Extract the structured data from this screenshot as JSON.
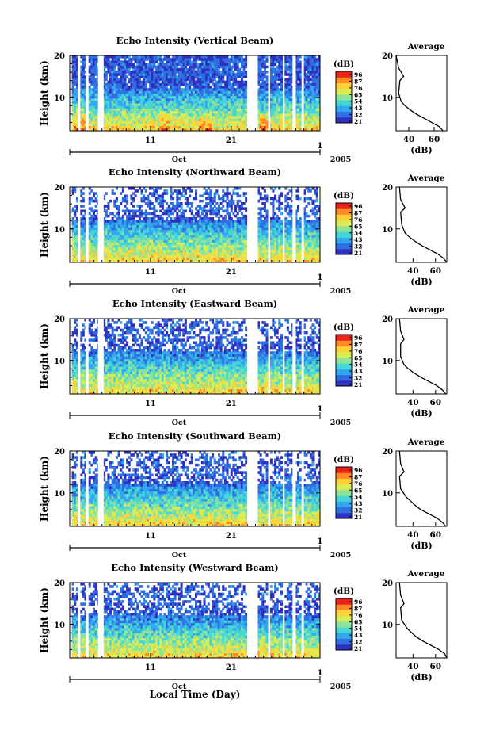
{
  "figure": {
    "xlabel": "Local Time (Day)",
    "ylabel": "Height (km)",
    "month_label": "Oct",
    "year_label": "2005",
    "colorbar_unit": "(dB)",
    "colorbar_ticks": [
      "96",
      "87",
      "76",
      "65",
      "54",
      "43",
      "32",
      "21"
    ],
    "colormap": [
      "#3030c0",
      "#2f6fe0",
      "#33a6f0",
      "#45d6d6",
      "#8ee39a",
      "#d9ec55",
      "#ffd23a",
      "#ff8a26",
      "#e8241c"
    ],
    "data_gap_color": "#ffffff"
  },
  "chart_data": [
    {
      "type": "heatmap",
      "title": "Echo Intensity (Vertical Beam)",
      "ylabel": "Height (km)",
      "y_ticks": [
        10,
        20
      ],
      "ylim": [
        2,
        20
      ],
      "x_tick_labels": [
        "11",
        "21"
      ],
      "bottom_tick_label": "1",
      "x_range": [
        "Oct 1 2005",
        "Nov 1 2005"
      ],
      "colorbar": {
        "label": "(dB)",
        "ticks": [
          96,
          87,
          76,
          65,
          54,
          43,
          32,
          21
        ]
      },
      "data_gaps_days": [
        [
          1.0,
          1.2
        ],
        [
          2.0,
          2.3
        ],
        [
          3.0,
          3.2
        ],
        [
          4.5,
          5.2
        ],
        [
          23.0,
          24.3
        ],
        [
          25.6,
          25.8
        ],
        [
          27.4,
          27.6
        ],
        [
          28.6,
          29.0
        ],
        [
          29.8,
          30.0
        ]
      ],
      "high_intensity_regions_days": [
        [
          1.5,
          3.0
        ],
        [
          12.0,
          13.5
        ],
        [
          17.0,
          18.5
        ],
        [
          24.5,
          25.5
        ]
      ],
      "profile": {
        "title": "Average",
        "xlabel": "(dB)",
        "x_ticks": [
          40,
          60
        ],
        "xlim": [
          30,
          70
        ],
        "y_ticks": [
          10,
          20
        ],
        "ylim": [
          2,
          20
        ],
        "x": [
          67,
          64,
          58,
          52,
          46,
          41,
          37,
          34,
          32,
          33,
          36,
          32,
          30
        ],
        "y": [
          2,
          3,
          4,
          5,
          6,
          7,
          8,
          9,
          11,
          14,
          15,
          17,
          20
        ]
      }
    },
    {
      "type": "heatmap",
      "title": "Echo Intensity (Northward Beam)",
      "ylabel": "Height (km)",
      "y_ticks": [
        10,
        20
      ],
      "ylim": [
        2,
        20
      ],
      "x_tick_labels": [
        "11",
        "21"
      ],
      "bottom_tick_label": "1",
      "x_range": [
        "Oct 1 2005",
        "Nov 1 2005"
      ],
      "colorbar": {
        "label": "(dB)",
        "ticks": [
          96,
          87,
          76,
          65,
          54,
          43,
          32,
          21
        ]
      },
      "data_gaps_days": [
        [
          1.0,
          1.2
        ],
        [
          2.0,
          2.3
        ],
        [
          3.0,
          3.2
        ],
        [
          4.5,
          5.2
        ],
        [
          23.0,
          24.3
        ],
        [
          25.6,
          25.8
        ],
        [
          27.4,
          27.6
        ],
        [
          28.6,
          29.0
        ],
        [
          29.8,
          30.0
        ]
      ],
      "profile": {
        "title": "Average",
        "xlabel": "(dB)",
        "x_ticks": [
          40,
          60
        ],
        "xlim": [
          25,
          70
        ],
        "y_ticks": [
          10,
          20
        ],
        "ylim": [
          2,
          20
        ],
        "x": [
          70,
          67,
          62,
          55,
          48,
          42,
          37,
          33,
          30,
          29,
          33,
          29,
          28
        ],
        "y": [
          2,
          3,
          4,
          5,
          6,
          7,
          8,
          9,
          11,
          14,
          15,
          17,
          20
        ]
      }
    },
    {
      "type": "heatmap",
      "title": "Echo Intensity (Eastward Beam)",
      "ylabel": "Height (km)",
      "y_ticks": [
        10,
        20
      ],
      "ylim": [
        2,
        20
      ],
      "x_tick_labels": [
        "11",
        "21"
      ],
      "bottom_tick_label": "1",
      "x_range": [
        "Oct 1 2005",
        "Nov 1 2005"
      ],
      "colorbar": {
        "label": "(dB)",
        "ticks": [
          96,
          87,
          76,
          65,
          54,
          43,
          32,
          21
        ]
      },
      "data_gaps_days": [
        [
          1.0,
          1.2
        ],
        [
          2.0,
          2.3
        ],
        [
          3.0,
          3.2
        ],
        [
          4.5,
          5.2
        ],
        [
          23.0,
          24.3
        ],
        [
          25.6,
          25.8
        ],
        [
          27.4,
          27.6
        ],
        [
          28.6,
          29.0
        ],
        [
          29.8,
          30.0
        ]
      ],
      "profile": {
        "title": "Average",
        "xlabel": "(dB)",
        "x_ticks": [
          40,
          60
        ],
        "xlim": [
          25,
          70
        ],
        "y_ticks": [
          10,
          20
        ],
        "ylim": [
          2,
          20
        ],
        "x": [
          69,
          66,
          61,
          54,
          47,
          41,
          36,
          32,
          29,
          29,
          32,
          29,
          28
        ],
        "y": [
          2,
          3,
          4,
          5,
          6,
          7,
          8,
          9,
          11,
          14,
          15,
          17,
          20
        ]
      }
    },
    {
      "type": "heatmap",
      "title": "Echo Intensity (Southward Beam)",
      "ylabel": "Height (km)",
      "y_ticks": [
        10,
        20
      ],
      "ylim": [
        2,
        20
      ],
      "x_tick_labels": [
        "11",
        "21"
      ],
      "bottom_tick_label": "1",
      "x_range": [
        "Oct 1 2005",
        "Nov 1 2005"
      ],
      "colorbar": {
        "label": "(dB)",
        "ticks": [
          96,
          87,
          76,
          65,
          54,
          43,
          32,
          21
        ]
      },
      "data_gaps_days": [
        [
          1.0,
          1.2
        ],
        [
          2.0,
          2.3
        ],
        [
          3.0,
          3.2
        ],
        [
          4.5,
          5.2
        ],
        [
          23.0,
          24.3
        ],
        [
          25.6,
          25.8
        ],
        [
          27.4,
          27.6
        ],
        [
          28.6,
          29.0
        ],
        [
          29.8,
          30.0
        ]
      ],
      "profile": {
        "title": "Average",
        "xlabel": "(dB)",
        "x_ticks": [
          40,
          60
        ],
        "xlim": [
          25,
          70
        ],
        "y_ticks": [
          10,
          20
        ],
        "ylim": [
          2,
          20
        ],
        "x": [
          69,
          66,
          61,
          54,
          47,
          42,
          38,
          34,
          29,
          28,
          32,
          29,
          28
        ],
        "y": [
          2,
          3,
          4,
          5,
          6,
          7,
          8,
          9,
          11,
          14,
          15,
          17,
          20
        ]
      }
    },
    {
      "type": "heatmap",
      "title": "Echo Intensity (Westward Beam)",
      "ylabel": "Height (km)",
      "y_ticks": [
        10,
        20
      ],
      "ylim": [
        2,
        20
      ],
      "x_tick_labels": [
        "11",
        "21"
      ],
      "bottom_tick_label": "1",
      "x_range": [
        "Oct 1 2005",
        "Nov 1 2005"
      ],
      "colorbar": {
        "label": "(dB)",
        "ticks": [
          96,
          87,
          76,
          65,
          54,
          43,
          32,
          21
        ]
      },
      "data_gaps_days": [
        [
          1.0,
          1.2
        ],
        [
          2.0,
          2.3
        ],
        [
          3.0,
          3.2
        ],
        [
          4.5,
          5.2
        ],
        [
          23.0,
          24.3
        ],
        [
          25.6,
          25.8
        ],
        [
          27.4,
          27.6
        ],
        [
          28.6,
          29.0
        ],
        [
          29.8,
          30.0
        ]
      ],
      "profile": {
        "title": "Average",
        "xlabel": "(dB)",
        "x_ticks": [
          40,
          60
        ],
        "xlim": [
          25,
          70
        ],
        "y_ticks": [
          10,
          20
        ],
        "ylim": [
          2,
          20
        ],
        "x": [
          70,
          68,
          63,
          56,
          49,
          43,
          39,
          35,
          30,
          29,
          32,
          29,
          28
        ],
        "y": [
          2,
          3,
          4,
          5,
          6,
          7,
          8,
          9,
          11,
          14,
          15,
          17,
          20
        ]
      }
    }
  ]
}
